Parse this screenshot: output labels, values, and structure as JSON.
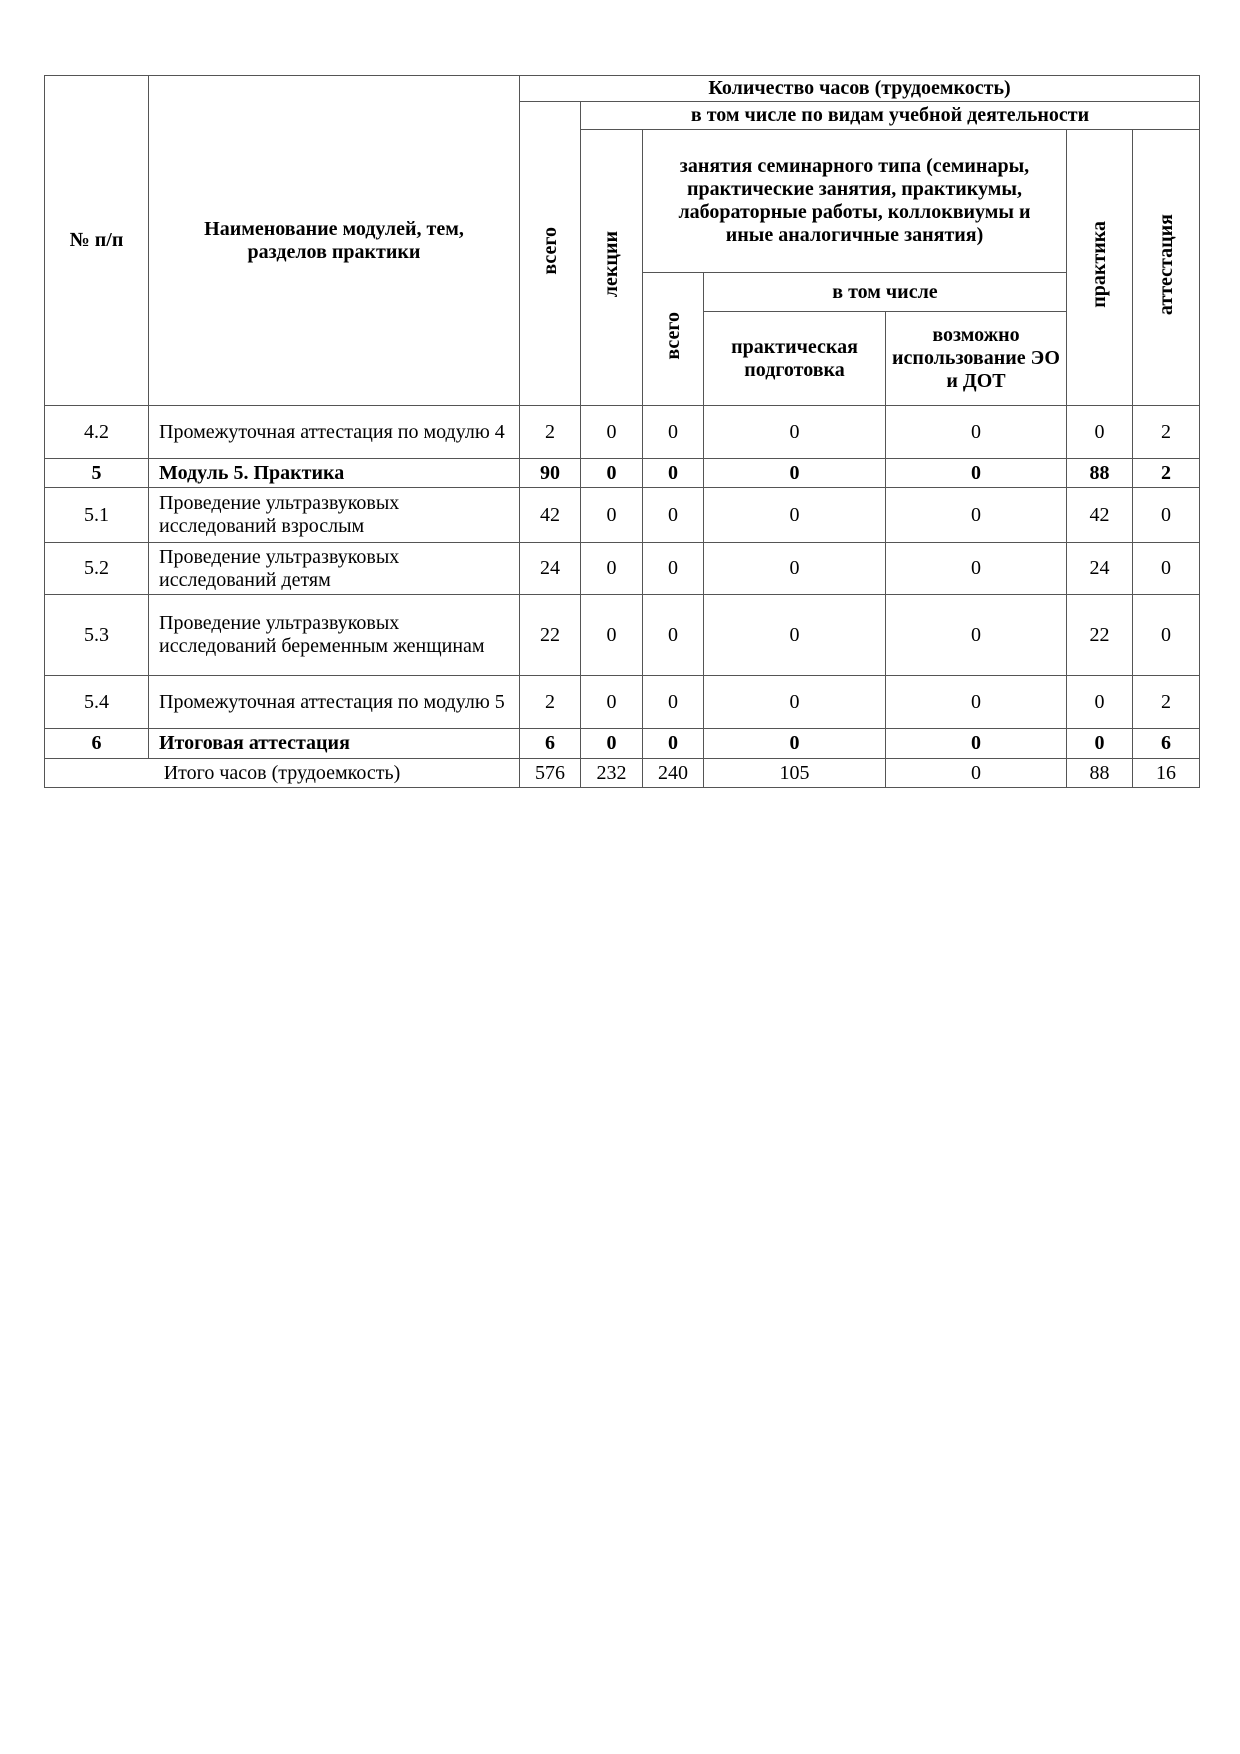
{
  "header": {
    "num": "№ п/п",
    "name": "Наименование модулей, тем, разделов практики",
    "hours": "Количество часов (трудоемкость)",
    "total": "всего",
    "by_type": "в том числе по видам учебной деятельности",
    "lectures": "лекции",
    "seminar": "занятия семинарного типа (семинары, практические занятия, практикумы, лабораторные работы, коллоквиумы и иные аналогичные занятия)",
    "seminar_total": "всего",
    "including": "в том числе",
    "practical_training": "практическая подготовка",
    "eo_dot": "возможно использование ЭО и ДОТ",
    "practice": "практика",
    "attestation": "аттестация"
  },
  "rows": [
    {
      "num": "4.2",
      "name": "Промежуточная аттестация по модулю 4",
      "v": [
        "2",
        "0",
        "0",
        "0",
        "0",
        "0",
        "2"
      ]
    },
    {
      "num": "5",
      "name": "Модуль 5. Практика",
      "v": [
        "90",
        "0",
        "0",
        "0",
        "0",
        "88",
        "2"
      ]
    },
    {
      "num": "5.1",
      "name": "Проведение ультразвуковых исследований взрослым",
      "v": [
        "42",
        "0",
        "0",
        "0",
        "0",
        "42",
        "0"
      ]
    },
    {
      "num": "5.2",
      "name": "Проведение ультразвуковых исследований детям",
      "v": [
        "24",
        "0",
        "0",
        "0",
        "0",
        "24",
        "0"
      ]
    },
    {
      "num": "5.3",
      "name": "Проведение ультразвуковых исследований беременным женщинам",
      "v": [
        "22",
        "0",
        "0",
        "0",
        "0",
        "22",
        "0"
      ]
    },
    {
      "num": "5.4",
      "name": "Промежуточная аттестация по модулю 5",
      "v": [
        "2",
        "0",
        "0",
        "0",
        "0",
        "0",
        "2"
      ]
    },
    {
      "num": "6",
      "name": "Итоговая аттестация",
      "v": [
        "6",
        "0",
        "0",
        "0",
        "0",
        "0",
        "6"
      ]
    }
  ],
  "total_row": {
    "label": "Итого часов (трудоемкость)",
    "v": [
      "576",
      "232",
      "240",
      "105",
      "0",
      "88",
      "16"
    ]
  }
}
